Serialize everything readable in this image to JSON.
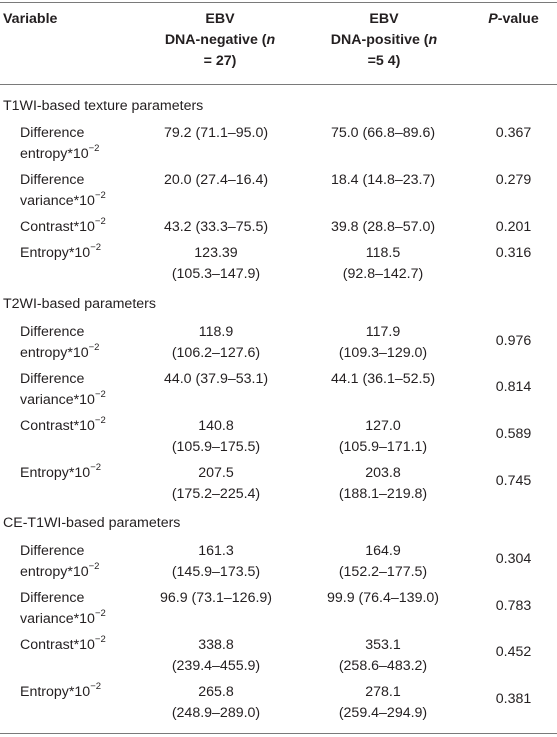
{
  "header": {
    "variable": "Variable",
    "ebv_negative_line1": "EBV",
    "ebv_negative_line2": "DNA-negative (",
    "ebv_negative_n": "n",
    "ebv_negative_line3": "= 27)",
    "ebv_positive_line1": "EBV",
    "ebv_positive_line2": "DNA-positive (",
    "ebv_positive_n": "n",
    "ebv_positive_line3": "=5 4)",
    "p_italic": "P",
    "p_suffix": "-value"
  },
  "superscript": "−2",
  "sections": [
    {
      "title": "T1WI-based texture parameters",
      "rows": [
        {
          "var1": "Difference",
          "var2": "entropy*10",
          "neg1": "79.2 (71.1–95.0)",
          "neg2": "",
          "pos1": "75.0 (66.8–89.6)",
          "pos2": "",
          "p": "0.367"
        },
        {
          "var1": "Difference",
          "var2": "variance*10",
          "neg1": "20.0 (27.4–16.4)",
          "neg2": "",
          "pos1": "18.4 (14.8–23.7)",
          "pos2": "",
          "p": "0.279"
        },
        {
          "var1": "Contrast*10",
          "var2": "",
          "neg1": "43.2 (33.3–75.5)",
          "neg2": "",
          "pos1": "39.8 (28.8–57.0)",
          "pos2": "",
          "p": "0.201"
        },
        {
          "var1": "Entropy*10",
          "var2": "",
          "neg1": "123.39",
          "neg2": "(105.3–147.9)",
          "pos1": "118.5",
          "pos2": "(92.8–142.7)",
          "p": "0.316"
        }
      ]
    },
    {
      "title": "T2WI-based parameters",
      "rows": [
        {
          "var1": "Difference",
          "var2": "entropy*10",
          "neg1": "118.9",
          "neg2": "(106.2–127.6)",
          "pos1": "117.9",
          "pos2": "(109.3–129.0)",
          "p": "0.976"
        },
        {
          "var1": "Difference",
          "var2": "variance*10",
          "neg1": "44.0 (37.9–53.1)",
          "neg2": "",
          "pos1": "44.1 (36.1–52.5)",
          "pos2": "",
          "p": "0.814"
        },
        {
          "var1": "Contrast*10",
          "var2": "",
          "neg1": "140.8",
          "neg2": "(105.9–175.5)",
          "pos1": "127.0",
          "pos2": "(105.9–171.1)",
          "p": "0.589"
        },
        {
          "var1": "Entropy*10",
          "var2": "",
          "neg1": "207.5",
          "neg2": "(175.2–225.4)",
          "pos1": "203.8",
          "pos2": "(188.1–219.8)",
          "p": "0.745"
        }
      ]
    },
    {
      "title": "CE-T1WI-based parameters",
      "rows": [
        {
          "var1": "Difference",
          "var2": "entropy*10",
          "neg1": "161.3",
          "neg2": "(145.9–173.5)",
          "pos1": "164.9",
          "pos2": "(152.2–177.5)",
          "p": "0.304"
        },
        {
          "var1": "Difference",
          "var2": "variance*10",
          "neg1": "96.9 (73.1–126.9)",
          "neg2": "",
          "pos1": "99.9 (76.4–139.0)",
          "pos2": "",
          "p": "0.783"
        },
        {
          "var1": "Contrast*10",
          "var2": "",
          "neg1": "338.8",
          "neg2": "(239.4–455.9)",
          "pos1": "353.1",
          "pos2": "(258.6–483.2)",
          "p": "0.452"
        },
        {
          "var1": "Entropy*10",
          "var2": "",
          "neg1": "265.8",
          "neg2": "(248.9–289.0)",
          "pos1": "278.1",
          "pos2": "(259.4–294.9)",
          "p": "0.381"
        }
      ]
    }
  ]
}
